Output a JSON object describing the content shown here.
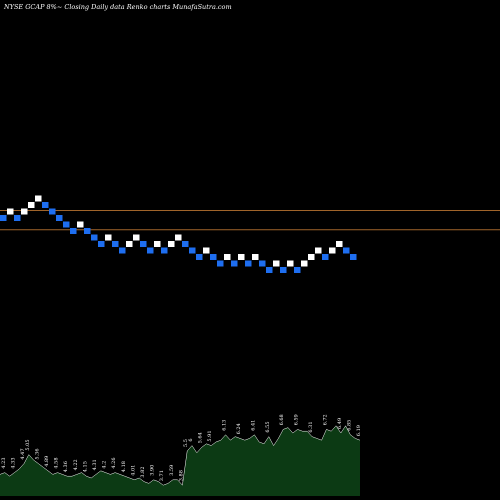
{
  "chart_data": {
    "type": "renko",
    "title": "NYSE GCAP 8%~  Closing Daily data  Renko  charts MunafaSutra.com",
    "colors": {
      "background": "#000000",
      "up_brick": "#ffffff",
      "down_brick": "#1e6ef0",
      "reference_line": "#a0642a",
      "volume_fill": "#0c3a14",
      "volume_line": "#ffffff"
    },
    "reference_lines": [
      1,
      -1.8
    ],
    "bricks": [
      {
        "d": "down",
        "level": 0
      },
      {
        "d": "up",
        "level": 1
      },
      {
        "d": "down",
        "level": 0
      },
      {
        "d": "up",
        "level": 1
      },
      {
        "d": "up",
        "level": 2
      },
      {
        "d": "up",
        "level": 3
      },
      {
        "d": "down",
        "level": 2
      },
      {
        "d": "down",
        "level": 1
      },
      {
        "d": "down",
        "level": 0
      },
      {
        "d": "down",
        "level": -1
      },
      {
        "d": "down",
        "level": -2
      },
      {
        "d": "up",
        "level": -1
      },
      {
        "d": "down",
        "level": -2
      },
      {
        "d": "down",
        "level": -3
      },
      {
        "d": "down",
        "level": -4
      },
      {
        "d": "up",
        "level": -3
      },
      {
        "d": "down",
        "level": -4
      },
      {
        "d": "down",
        "level": -5
      },
      {
        "d": "up",
        "level": -4
      },
      {
        "d": "up",
        "level": -3
      },
      {
        "d": "down",
        "level": -4
      },
      {
        "d": "down",
        "level": -5
      },
      {
        "d": "up",
        "level": -4
      },
      {
        "d": "down",
        "level": -5
      },
      {
        "d": "up",
        "level": -4
      },
      {
        "d": "up",
        "level": -3
      },
      {
        "d": "down",
        "level": -4
      },
      {
        "d": "down",
        "level": -5
      },
      {
        "d": "down",
        "level": -6
      },
      {
        "d": "up",
        "level": -5
      },
      {
        "d": "down",
        "level": -6
      },
      {
        "d": "down",
        "level": -7
      },
      {
        "d": "up",
        "level": -6
      },
      {
        "d": "down",
        "level": -7
      },
      {
        "d": "up",
        "level": -6
      },
      {
        "d": "down",
        "level": -7
      },
      {
        "d": "up",
        "level": -6
      },
      {
        "d": "down",
        "level": -7
      },
      {
        "d": "down",
        "level": -8
      },
      {
        "d": "up",
        "level": -7
      },
      {
        "d": "down",
        "level": -8
      },
      {
        "d": "up",
        "level": -7
      },
      {
        "d": "down",
        "level": -8
      },
      {
        "d": "up",
        "level": -7
      },
      {
        "d": "up",
        "level": -6
      },
      {
        "d": "up",
        "level": -5
      },
      {
        "d": "down",
        "level": -6
      },
      {
        "d": "up",
        "level": -5
      },
      {
        "d": "up",
        "level": -4
      },
      {
        "d": "down",
        "level": -5
      },
      {
        "d": "down",
        "level": -6
      }
    ],
    "volume_values": [
      4.2,
      4.3,
      4.1,
      4.3,
      4.5,
      4.8,
      5.3,
      5.0,
      4.8,
      4.6,
      4.4,
      4.2,
      4.3,
      4.2,
      4.1,
      4.1,
      4.2,
      4.3,
      4.1,
      4.0,
      4.2,
      4.4,
      4.3,
      4.2,
      4.3,
      4.2,
      4.1,
      4.0,
      3.9,
      4.0,
      3.8,
      3.7,
      3.9,
      3.8,
      3.6,
      3.7,
      3.9,
      3.9,
      3.6,
      5.5,
      5.8,
      5.4,
      5.7,
      5.9,
      5.8,
      6.0,
      6.1,
      6.4,
      6.1,
      6.3,
      6.2,
      6.1,
      6.2,
      6.4,
      6.0,
      5.9,
      6.3,
      5.8,
      6.2,
      6.7,
      6.8,
      6.5,
      6.7,
      6.6,
      6.6,
      6.3,
      6.2,
      6.1,
      6.7,
      6.6,
      6.9,
      6.5,
      6.9,
      6.4,
      6.2,
      6.1
    ],
    "volume_labels": [
      {
        "i": 1,
        "t": "4.23"
      },
      {
        "i": 3,
        "t": "4.33"
      },
      {
        "i": 5,
        "t": "4.47"
      },
      {
        "i": 6,
        "t": "5.05"
      },
      {
        "i": 8,
        "t": "5.36"
      },
      {
        "i": 10,
        "t": "4.89"
      },
      {
        "i": 12,
        "t": "4.58"
      },
      {
        "i": 14,
        "t": "4.36"
      },
      {
        "i": 16,
        "t": "4.22"
      },
      {
        "i": 18,
        "t": "4.15"
      },
      {
        "i": 20,
        "t": "4.31"
      },
      {
        "i": 22,
        "t": "4.2"
      },
      {
        "i": 24,
        "t": "4.26"
      },
      {
        "i": 26,
        "t": "4.18"
      },
      {
        "i": 28,
        "t": "4.01"
      },
      {
        "i": 30,
        "t": "3.82"
      },
      {
        "i": 32,
        "t": "3.90"
      },
      {
        "i": 34,
        "t": "3.71"
      },
      {
        "i": 36,
        "t": "3.59"
      },
      {
        "i": 38,
        "t": "3.88"
      },
      {
        "i": 39,
        "t": "5.5"
      },
      {
        "i": 40,
        "t": "6"
      },
      {
        "i": 42,
        "t": "5.64"
      },
      {
        "i": 44,
        "t": "5.91"
      },
      {
        "i": 47,
        "t": "6.13"
      },
      {
        "i": 50,
        "t": "6.24"
      },
      {
        "i": 53,
        "t": "6.41"
      },
      {
        "i": 56,
        "t": "6.55"
      },
      {
        "i": 59,
        "t": "6.68"
      },
      {
        "i": 62,
        "t": "6.59"
      },
      {
        "i": 65,
        "t": "6.31"
      },
      {
        "i": 68,
        "t": "6.72"
      },
      {
        "i": 71,
        "t": "6.49"
      },
      {
        "i": 73,
        "t": "6.85"
      },
      {
        "i": 75,
        "t": "6.19"
      }
    ]
  }
}
